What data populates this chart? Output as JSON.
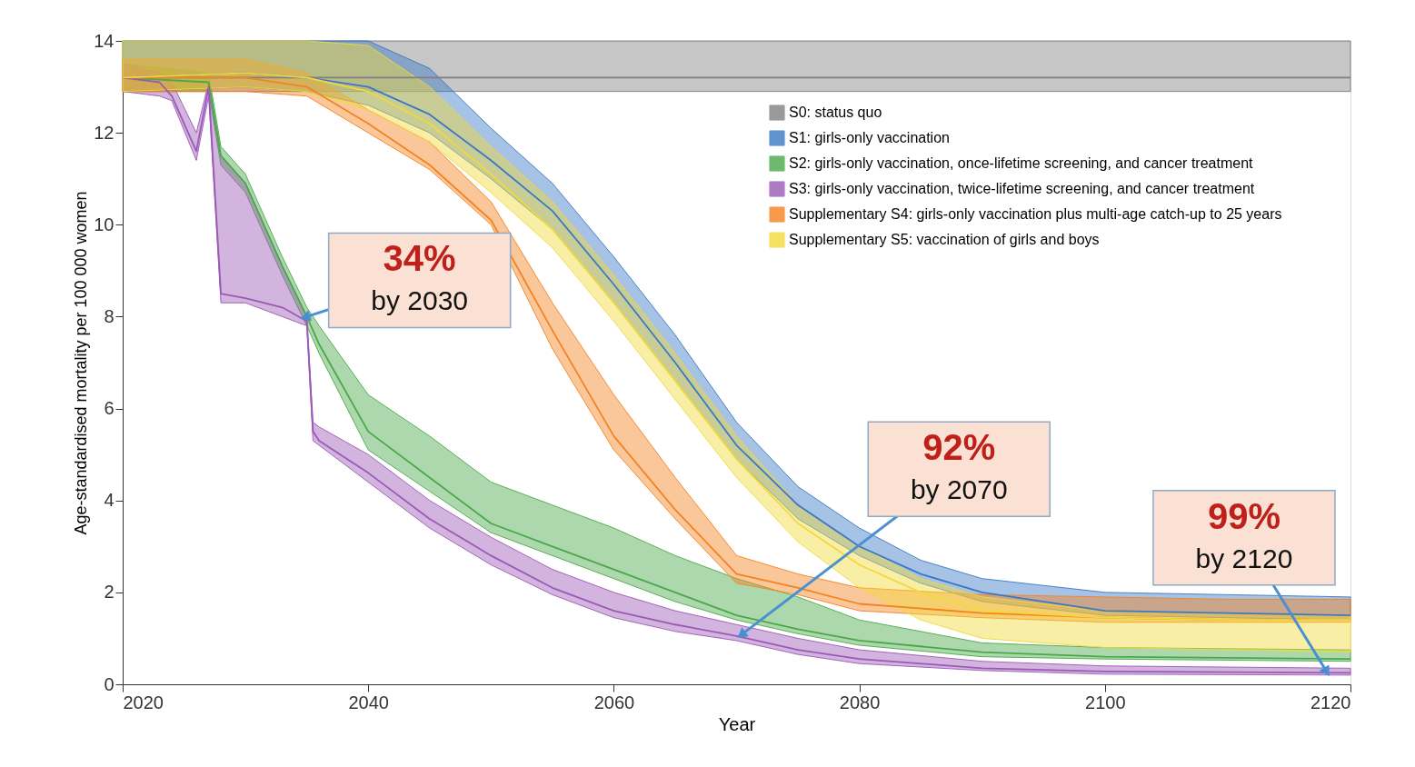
{
  "chart_data": {
    "type": "line",
    "xlabel": "Year",
    "ylabel": "Age-standardised mortality per 100 000 women",
    "xlim": [
      2020,
      2120
    ],
    "ylim": [
      0,
      14
    ],
    "xticks": [
      2020,
      2040,
      2060,
      2080,
      2100,
      2120
    ],
    "yticks": [
      0,
      2,
      4,
      6,
      8,
      10,
      12,
      14
    ],
    "grid": false,
    "legend": "top right",
    "line_style": "solid",
    "series": [
      {
        "name": "S0: status quo",
        "color": "#808080",
        "x": [
          2020,
          2120
        ],
        "values": [
          13.2,
          13.2
        ],
        "lower": [
          12.9,
          12.9
        ],
        "upper": [
          14,
          14
        ]
      },
      {
        "name": "S1: girls-only vaccination",
        "color": "#3a78c3",
        "x": [
          2020,
          2030,
          2035,
          2040,
          2045,
          2050,
          2055,
          2060,
          2065,
          2070,
          2075,
          2080,
          2085,
          2090,
          2100,
          2110,
          2120
        ],
        "values": [
          13.2,
          13.3,
          13.2,
          13.0,
          12.4,
          11.4,
          10.3,
          8.7,
          7.0,
          5.2,
          3.9,
          3.0,
          2.4,
          2.0,
          1.6,
          1.55,
          1.5
        ],
        "lower": [
          12.9,
          13.0,
          12.9,
          12.6,
          12.0,
          11.0,
          9.9,
          8.3,
          6.6,
          4.9,
          3.6,
          2.8,
          2.2,
          1.8,
          1.5,
          1.45,
          1.4
        ],
        "upper": [
          14,
          14,
          14,
          14,
          13.4,
          12.1,
          10.9,
          9.3,
          7.6,
          5.7,
          4.3,
          3.4,
          2.7,
          2.3,
          2.0,
          1.95,
          1.9
        ]
      },
      {
        "name": "S2: girls-only vaccination, once-lifetime screening, and cancer treatment",
        "color": "#4aa84a",
        "x": [
          2020,
          2027,
          2028,
          2030,
          2033,
          2035,
          2036,
          2040,
          2045,
          2050,
          2055,
          2060,
          2065,
          2070,
          2075,
          2080,
          2090,
          2100,
          2120
        ],
        "values": [
          13.2,
          13.1,
          11.5,
          10.9,
          9.1,
          8.0,
          7.4,
          5.5,
          4.5,
          3.5,
          3.0,
          2.5,
          2.0,
          1.5,
          1.2,
          0.95,
          0.7,
          0.6,
          0.55
        ],
        "lower": [
          12.9,
          12.9,
          11.3,
          10.7,
          8.9,
          7.8,
          7.2,
          5.1,
          4.2,
          3.3,
          2.8,
          2.3,
          1.8,
          1.4,
          1.1,
          0.85,
          0.6,
          0.55,
          0.5
        ],
        "upper": [
          13.5,
          13.3,
          11.7,
          11.1,
          9.3,
          8.2,
          7.8,
          6.3,
          5.4,
          4.4,
          3.9,
          3.4,
          2.8,
          2.3,
          1.9,
          1.4,
          0.9,
          0.8,
          0.75
        ]
      },
      {
        "name": "S3: girls-only vaccination, twice-lifetime screening, and cancer treatment",
        "color": "#9b59b6",
        "x": [
          2020,
          2023,
          2024,
          2026,
          2027,
          2028,
          2030,
          2033,
          2035,
          2035.5,
          2036,
          2040,
          2045,
          2050,
          2055,
          2060,
          2065,
          2070,
          2075,
          2080,
          2090,
          2100,
          2120
        ],
        "values": [
          13.2,
          13.1,
          12.8,
          11.6,
          13.0,
          8.5,
          8.4,
          8.2,
          7.9,
          5.5,
          5.3,
          4.6,
          3.6,
          2.8,
          2.1,
          1.6,
          1.3,
          1.05,
          0.75,
          0.55,
          0.35,
          0.28,
          0.25
        ],
        "lower": [
          12.9,
          12.8,
          12.7,
          11.4,
          12.8,
          8.3,
          8.3,
          8.0,
          7.8,
          5.3,
          5.2,
          4.4,
          3.4,
          2.6,
          1.95,
          1.45,
          1.15,
          0.95,
          0.65,
          0.45,
          0.3,
          0.22,
          0.2
        ],
        "upper": [
          13.5,
          13.3,
          13.1,
          12.0,
          13.1,
          11.5,
          10.9,
          9.1,
          8.0,
          5.7,
          5.6,
          5.0,
          4.0,
          3.2,
          2.5,
          2.0,
          1.6,
          1.3,
          1.0,
          0.75,
          0.5,
          0.4,
          0.35
        ]
      },
      {
        "name": "Supplementary S4: girls-only vaccination plus multi-age catch-up to 25 years",
        "color": "#f58220",
        "x": [
          2020,
          2030,
          2035,
          2040,
          2045,
          2050,
          2055,
          2060,
          2065,
          2070,
          2075,
          2080,
          2090,
          2100,
          2110,
          2120
        ],
        "values": [
          13.2,
          13.2,
          13.0,
          12.2,
          11.3,
          10.1,
          7.7,
          5.4,
          3.8,
          2.4,
          2.1,
          1.75,
          1.55,
          1.45,
          1.4,
          1.4
        ],
        "lower": [
          12.9,
          12.9,
          12.8,
          12.0,
          11.2,
          10.0,
          7.3,
          5.1,
          3.6,
          2.2,
          1.95,
          1.6,
          1.45,
          1.35,
          1.35,
          1.35
        ],
        "upper": [
          13.6,
          13.6,
          13.3,
          12.5,
          11.8,
          10.5,
          8.3,
          6.3,
          4.5,
          2.8,
          2.4,
          2.1,
          1.95,
          1.9,
          1.85,
          1.85
        ]
      },
      {
        "name": "Supplementary S5: vaccination of girls and boys",
        "color": "#f2d93a",
        "x": [
          2020,
          2030,
          2035,
          2040,
          2045,
          2050,
          2055,
          2060,
          2065,
          2070,
          2075,
          2080,
          2085,
          2090,
          2100,
          2110,
          2120
        ],
        "values": [
          13.2,
          13.3,
          13.2,
          12.9,
          12.2,
          11.1,
          9.9,
          8.3,
          6.6,
          4.9,
          3.5,
          2.6,
          2.0,
          1.6,
          1.45,
          1.4,
          1.4
        ],
        "lower": [
          12.9,
          13.0,
          12.9,
          12.5,
          11.8,
          10.7,
          9.5,
          7.9,
          6.2,
          4.5,
          3.1,
          2.1,
          1.4,
          1.0,
          0.8,
          0.75,
          0.7
        ],
        "upper": [
          14,
          14,
          14,
          13.9,
          13.0,
          11.7,
          10.5,
          8.9,
          7.2,
          5.4,
          3.9,
          3.0,
          2.3,
          1.9,
          1.6,
          1.55,
          1.5
        ]
      }
    ],
    "annotations": [
      {
        "text": "34%\nby 2030",
        "x": 2035,
        "y": 8
      },
      {
        "text": "92%\nby 2070",
        "x": 2070.5,
        "y": 1.1
      },
      {
        "text": "99%\nby 2120",
        "x": 2118,
        "y": 0.3
      }
    ]
  }
}
